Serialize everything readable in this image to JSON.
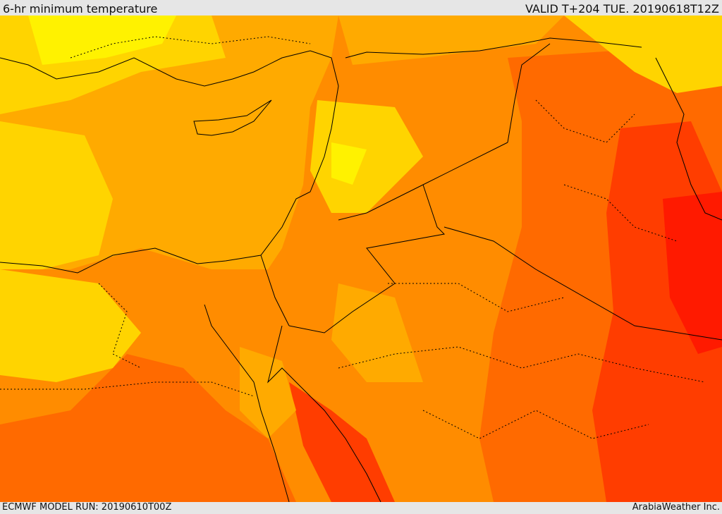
{
  "header": {
    "title": "6-hr minimum temperature",
    "valid": "VALID T+204 TUE. 20190618T12Z"
  },
  "footer": {
    "model_run": "ECMWF MODEL RUN: 20190610T00Z",
    "credit": "ArabiaWeather Inc."
  },
  "map": {
    "palette": [
      "#fff200",
      "#ffd400",
      "#ffaa00",
      "#ff8c00",
      "#ff6a00",
      "#ff3d00",
      "#ff1a00"
    ]
  }
}
